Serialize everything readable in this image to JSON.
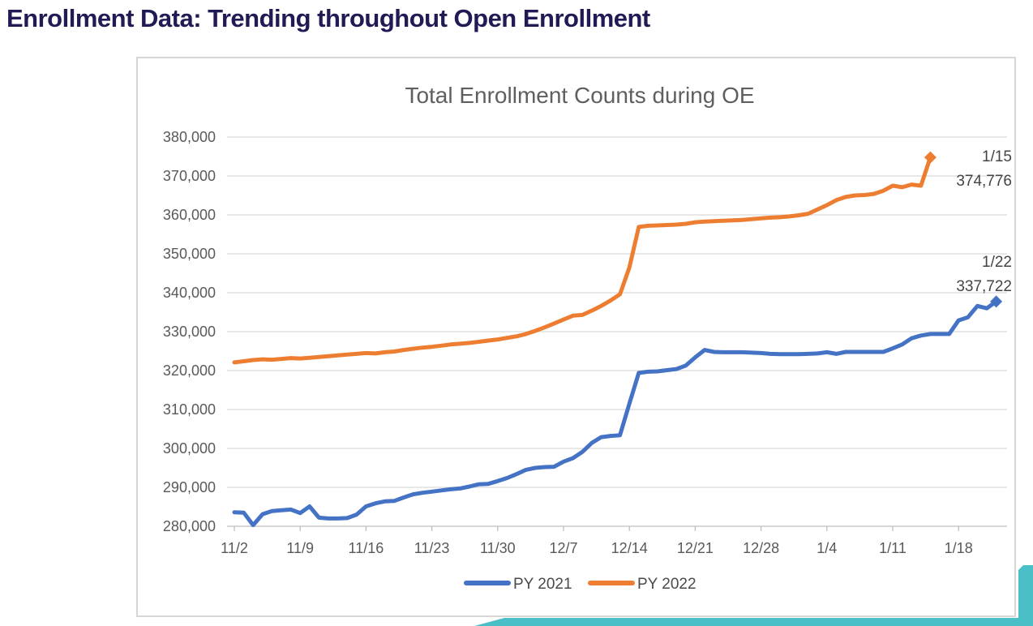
{
  "page": {
    "title": "Enrollment Data: Trending throughout Open Enrollment"
  },
  "colors": {
    "title_navy": "#201A55",
    "teal_accent": "#4BBFC8",
    "card_border": "#D6D6D6",
    "gridline": "#D9D9D9",
    "axis_line": "#BFBFBF",
    "axis_text": "#595959",
    "chart_title_text": "#5F5F5F",
    "annotation_text": "#444444",
    "legend_text": "#4A4A4A",
    "py2021_blue": "#4472C4",
    "py2022_orange": "#ED7D31"
  },
  "chart_data": {
    "type": "line",
    "title": "Total Enrollment Counts during OE",
    "xlabel": "",
    "ylabel": "",
    "ylim": [
      280000,
      380000
    ],
    "y_tick_step": 10000,
    "y_tick_labels": [
      "280,000",
      "290,000",
      "300,000",
      "310,000",
      "320,000",
      "330,000",
      "340,000",
      "350,000",
      "360,000",
      "370,000",
      "380,000"
    ],
    "x_tick_labels": [
      "11/2",
      "11/9",
      "11/16",
      "11/23",
      "11/30",
      "12/7",
      "12/14",
      "12/21",
      "12/28",
      "1/4",
      "1/11",
      "1/18"
    ],
    "x_tick_days": [
      0,
      7,
      14,
      21,
      28,
      35,
      42,
      49,
      56,
      63,
      70,
      77
    ],
    "x_start_date": "11/2",
    "x_frequency": "daily",
    "grid": "horizontal",
    "legend_position": "bottom",
    "series": [
      {
        "name": "PY 2021",
        "color": "#4472C4",
        "end_marker": "diamond",
        "end_label_date": "1/22",
        "end_value": 337722,
        "values": [
          283600,
          283500,
          280300,
          283100,
          283900,
          284100,
          284300,
          283400,
          285100,
          282200,
          282000,
          282000,
          282100,
          283000,
          285100,
          285900,
          286400,
          286500,
          287400,
          288200,
          288600,
          288900,
          289200,
          289500,
          289700,
          290200,
          290800,
          290900,
          291600,
          292400,
          293400,
          294500,
          295000,
          295200,
          295300,
          296600,
          297500,
          299100,
          301400,
          302900,
          303200,
          303400,
          311500,
          319400,
          319700,
          319800,
          320100,
          320400,
          321300,
          323400,
          325300,
          324800,
          324700,
          324700,
          324700,
          324600,
          324500,
          324300,
          324200,
          324200,
          324200,
          324300,
          324400,
          324700,
          324300,
          324800,
          324800,
          324800,
          324800,
          324800,
          325700,
          326700,
          328300,
          329000,
          329400,
          329400,
          329400,
          332900,
          333700,
          336600,
          336000,
          337722
        ]
      },
      {
        "name": "PY 2022",
        "color": "#ED7D31",
        "end_marker": "diamond",
        "end_label_date": "1/15",
        "end_value": 374776,
        "values": [
          322100,
          322400,
          322700,
          322900,
          322800,
          323000,
          323200,
          323100,
          323300,
          323500,
          323700,
          323900,
          324100,
          324300,
          324500,
          324400,
          324700,
          324900,
          325300,
          325600,
          325900,
          326100,
          326400,
          326700,
          326900,
          327100,
          327400,
          327700,
          328000,
          328400,
          328800,
          329400,
          330200,
          331100,
          332100,
          333100,
          334100,
          334300,
          335400,
          336600,
          338000,
          339600,
          346500,
          356900,
          357200,
          357300,
          357400,
          357500,
          357700,
          358100,
          358300,
          358400,
          358500,
          358600,
          358700,
          358900,
          359100,
          359300,
          359400,
          359600,
          359900,
          360300,
          361400,
          362500,
          363800,
          364600,
          365000,
          365100,
          365400,
          366200,
          367500,
          367100,
          367800,
          367500,
          374776
        ]
      }
    ],
    "annotations": [
      {
        "series": "PY 2022",
        "lines": [
          "1/15",
          "374,776"
        ]
      },
      {
        "series": "PY 2021",
        "lines": [
          "1/22",
          "337,722"
        ]
      }
    ],
    "legend": [
      {
        "label": "PY 2021"
      },
      {
        "label": "PY 2022"
      }
    ]
  }
}
